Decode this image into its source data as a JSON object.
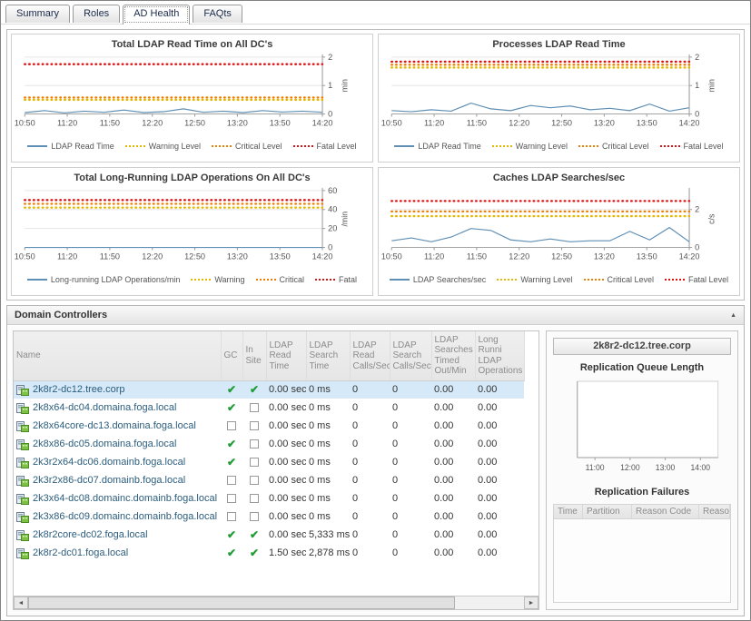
{
  "tabs": [
    {
      "label": "Summary",
      "active": false
    },
    {
      "label": "Roles",
      "active": false
    },
    {
      "label": "AD Health",
      "active": true
    },
    {
      "label": "FAQts",
      "active": false
    }
  ],
  "charts": [
    {
      "type": "line",
      "title": "Total LDAP Read Time on All DC's",
      "unit": "min",
      "ylim": [
        0,
        2
      ],
      "yticks": [
        0,
        1,
        2
      ],
      "xticks": [
        "10:50",
        "11:20",
        "11:50",
        "12:20",
        "12:50",
        "13:20",
        "13:50",
        "14:20"
      ],
      "thresholds": [
        {
          "label": "Warning Level",
          "value": 0.5,
          "color": "#e4b700"
        },
        {
          "label": "Critical Level",
          "value": 0.58,
          "color": "#ef7d00"
        },
        {
          "label": "Fatal Level",
          "value": 1.75,
          "color": "#dd1111"
        }
      ],
      "series": {
        "label": "LDAP Read Time",
        "color": "#5f8fb4",
        "values": [
          0.05,
          0.12,
          0.04,
          0.1,
          0.06,
          0.14,
          0.05,
          0.08,
          0.18,
          0.06,
          0.1,
          0.05,
          0.12,
          0.07,
          0.1,
          0.06
        ]
      }
    },
    {
      "type": "line",
      "title": "Processes LDAP Read Time",
      "unit": "min",
      "ylim": [
        0,
        2
      ],
      "yticks": [
        0,
        1,
        2
      ],
      "xticks": [
        "10:50",
        "11:20",
        "11:50",
        "12:20",
        "12:50",
        "13:20",
        "13:50",
        "14:20"
      ],
      "thresholds": [
        {
          "label": "Warning Level",
          "value": 1.63,
          "color": "#e4b700"
        },
        {
          "label": "Critical Level",
          "value": 1.73,
          "color": "#ef7d00"
        },
        {
          "label": "Fatal Level",
          "value": 1.84,
          "color": "#dd1111"
        }
      ],
      "series": {
        "label": "LDAP Read Time",
        "color": "#5f8fb4",
        "values": [
          0.12,
          0.08,
          0.15,
          0.1,
          0.38,
          0.18,
          0.12,
          0.3,
          0.22,
          0.28,
          0.15,
          0.2,
          0.12,
          0.35,
          0.1,
          0.22
        ]
      }
    },
    {
      "type": "line",
      "title": "Total Long-Running LDAP Operations On All DC's",
      "unit": "/min",
      "ylim": [
        0,
        60
      ],
      "yticks": [
        0,
        20,
        40,
        60
      ],
      "xticks": [
        "10:50",
        "11:20",
        "11:50",
        "12:20",
        "12:50",
        "13:20",
        "13:50",
        "14:20"
      ],
      "thresholds": [
        {
          "label": "Warning",
          "value": 42,
          "color": "#e4b700"
        },
        {
          "label": "Critical",
          "value": 46,
          "color": "#ef7d00"
        },
        {
          "label": "Fatal",
          "value": 50,
          "color": "#dd1111"
        }
      ],
      "series": {
        "label": "Long-running LDAP Operations/min",
        "color": "#5f8fb4",
        "values": [
          0,
          0,
          0,
          0,
          0,
          0,
          0,
          0,
          0,
          0,
          0,
          0,
          0,
          0,
          0,
          0
        ]
      }
    },
    {
      "type": "line",
      "title": "Caches LDAP Searches/sec",
      "unit": "c/s",
      "ylim": [
        0,
        3
      ],
      "yticks": [
        0,
        2
      ],
      "xticks": [
        "10:50",
        "11:20",
        "11:50",
        "12:20",
        "12:50",
        "13:20",
        "13:50",
        "14:20"
      ],
      "thresholds": [
        {
          "label": "Warning Level",
          "value": 1.65,
          "color": "#e4b700"
        },
        {
          "label": "Critical Level",
          "value": 1.9,
          "color": "#ef7d00"
        },
        {
          "label": "Fatal Level",
          "value": 2.45,
          "color": "#dd1111"
        }
      ],
      "series": {
        "label": "LDAP Searches/sec",
        "color": "#5f8fb4",
        "values": [
          0.35,
          0.5,
          0.3,
          0.55,
          1.0,
          0.9,
          0.4,
          0.3,
          0.45,
          0.3,
          0.35,
          0.35,
          0.85,
          0.4,
          1.05,
          0.3
        ]
      }
    }
  ],
  "domain_controllers": {
    "title": "Domain Controllers",
    "columns": [
      "Name",
      "GC",
      "In Site",
      "LDAP Read Time",
      "LDAP Search Time",
      "LDAP Read Calls/Sec",
      "LDAP Search Calls/Sec",
      "LDAP Searches Timed Out/Min",
      "Long Runni LDAP Operations"
    ],
    "rows": [
      {
        "name": "2k8r2-dc12.tree.corp",
        "gc": true,
        "in_site": true,
        "read_time": "0.00 sec",
        "search_time": "0 ms",
        "read_calls": "0",
        "search_calls": "0",
        "timed_out": "0.00",
        "long_running": "0.00",
        "selected": true
      },
      {
        "name": "2k8x64-dc04.domaina.foga.local",
        "gc": true,
        "in_site": false,
        "read_time": "0.00 sec",
        "search_time": "0 ms",
        "read_calls": "0",
        "search_calls": "0",
        "timed_out": "0.00",
        "long_running": "0.00",
        "selected": false
      },
      {
        "name": "2k8x64core-dc13.domaina.foga.local",
        "gc": false,
        "in_site": false,
        "read_time": "0.00 sec",
        "search_time": "0 ms",
        "read_calls": "0",
        "search_calls": "0",
        "timed_out": "0.00",
        "long_running": "0.00",
        "selected": false
      },
      {
        "name": "2k8x86-dc05.domaina.foga.local",
        "gc": true,
        "in_site": false,
        "read_time": "0.00 sec",
        "search_time": "0 ms",
        "read_calls": "0",
        "search_calls": "0",
        "timed_out": "0.00",
        "long_running": "0.00",
        "selected": false
      },
      {
        "name": "2k3r2x64-dc06.domainb.foga.local",
        "gc": true,
        "in_site": false,
        "read_time": "0.00 sec",
        "search_time": "0 ms",
        "read_calls": "0",
        "search_calls": "0",
        "timed_out": "0.00",
        "long_running": "0.00",
        "selected": false
      },
      {
        "name": "2k3r2x86-dc07.domainb.foga.local",
        "gc": false,
        "in_site": false,
        "read_time": "0.00 sec",
        "search_time": "0 ms",
        "read_calls": "0",
        "search_calls": "0",
        "timed_out": "0.00",
        "long_running": "0.00",
        "selected": false
      },
      {
        "name": "2k3x64-dc08.domainc.domainb.foga.local",
        "gc": false,
        "in_site": false,
        "read_time": "0.00 sec",
        "search_time": "0 ms",
        "read_calls": "0",
        "search_calls": "0",
        "timed_out": "0.00",
        "long_running": "0.00",
        "selected": false
      },
      {
        "name": "2k3x86-dc09.domainc.domainb.foga.local",
        "gc": false,
        "in_site": false,
        "read_time": "0.00 sec",
        "search_time": "0 ms",
        "read_calls": "0",
        "search_calls": "0",
        "timed_out": "0.00",
        "long_running": "0.00",
        "selected": false
      },
      {
        "name": "2k8r2core-dc02.foga.local",
        "gc": true,
        "in_site": true,
        "read_time": "0.00 sec",
        "search_time": "5,333 ms",
        "read_calls": "0",
        "search_calls": "0",
        "timed_out": "0.00",
        "long_running": "0.00",
        "selected": false
      },
      {
        "name": "2k8r2-dc01.foga.local",
        "gc": true,
        "in_site": true,
        "read_time": "1.50 sec",
        "search_time": "2,878 ms",
        "read_calls": "0",
        "search_calls": "0",
        "timed_out": "0.00",
        "long_running": "0.00",
        "selected": false
      }
    ]
  },
  "detail": {
    "title": "2k8r2-dc12.tree.corp",
    "replication_queue": {
      "title": "Replication Queue Length",
      "xticks": [
        "11:00",
        "12:00",
        "13:00",
        "14:00"
      ],
      "values": []
    },
    "replication_failures": {
      "title": "Replication Failures",
      "columns": [
        "Time",
        "Partition",
        "Reason Code",
        "Reason"
      ],
      "rows": []
    }
  }
}
